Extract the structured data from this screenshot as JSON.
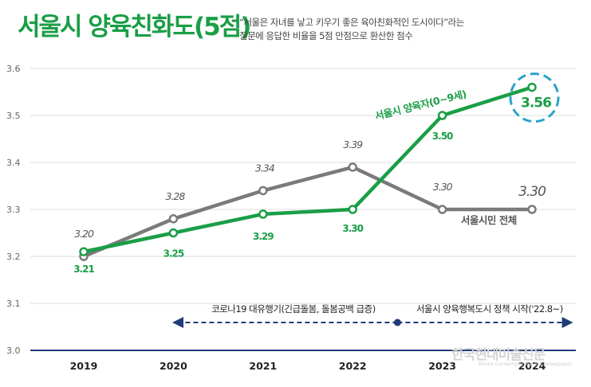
{
  "title": "서울시 양육친화도(5점)",
  "subtitle_line1": "“서울은 자녀를 낳고 키우기 좋은 육아친화적인 도시이다”라는",
  "subtitle_line2": "질문에 응답한 비율을 5점 만점으로 환산한 점수",
  "colors": {
    "green": "#1a9e46",
    "gray": "#7a7a7a",
    "navy": "#1f3c7a",
    "teal": "#2aa3c9",
    "grid": "#dcdcdc"
  },
  "chart_data": {
    "type": "line",
    "x": [
      "2019",
      "2020",
      "2021",
      "2022",
      "2023",
      "2024"
    ],
    "ylim": [
      3.0,
      3.6
    ],
    "yticks": [
      "3.0",
      "3.1",
      "3.2",
      "3.3",
      "3.4",
      "3.5",
      "3.6"
    ],
    "grid": true,
    "series": [
      {
        "name": "서울시 양육자(0~9세)",
        "color": "#1a9e46",
        "values": [
          3.21,
          3.25,
          3.29,
          3.3,
          3.5,
          3.56
        ],
        "labels": [
          "3.21",
          "3.25",
          "3.29",
          "3.30",
          "3.50",
          "3.56"
        ]
      },
      {
        "name": "서울시민 전체",
        "color": "#7a7a7a",
        "values": [
          3.2,
          3.28,
          3.34,
          3.39,
          3.3,
          3.3
        ],
        "labels": [
          "3.20",
          "3.28",
          "3.34",
          "3.39",
          "3.30",
          "3.30"
        ]
      }
    ],
    "annotations": [
      {
        "text": "코로나19 대유행기(긴급돌봄, 돌봄공백 급증)",
        "from": "2020",
        "to": "2022.5"
      },
      {
        "text": "서울시 양육행복도시 정책 시작('22.8~)",
        "from": "2022.5",
        "to": "2024.5"
      }
    ]
  },
  "watermark": {
    "ko": "한국현대미술신문",
    "en": "Korea Contemporary Art Newspaper"
  }
}
